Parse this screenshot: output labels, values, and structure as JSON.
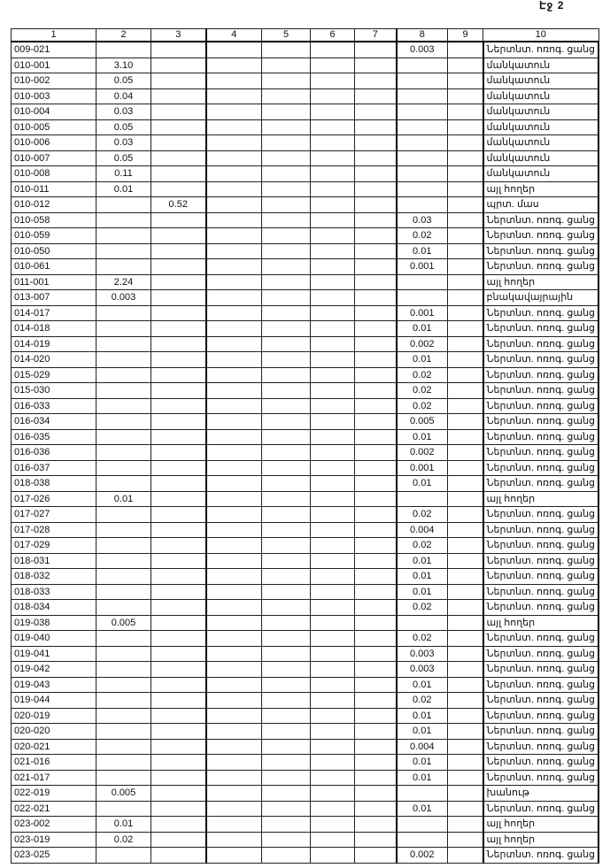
{
  "page_label": "Էջ 2",
  "columns": [
    "1",
    "2",
    "3",
    "4",
    "5",
    "6",
    "7",
    "8",
    "9",
    "10"
  ],
  "rows": [
    [
      "009-021",
      "",
      "",
      "",
      "",
      "",
      "",
      "0.003",
      "",
      "Ներտնտ. ոռոգ. ցանց"
    ],
    [
      "010-001",
      "3.10",
      "",
      "",
      "",
      "",
      "",
      "",
      "",
      "մանկատուն"
    ],
    [
      "010-002",
      "0.05",
      "",
      "",
      "",
      "",
      "",
      "",
      "",
      "մանկատուն"
    ],
    [
      "010-003",
      "0.04",
      "",
      "",
      "",
      "",
      "",
      "",
      "",
      "մանկատուն"
    ],
    [
      "010-004",
      "0.03",
      "",
      "",
      "",
      "",
      "",
      "",
      "",
      "մանկատուն"
    ],
    [
      "010-005",
      "0.05",
      "",
      "",
      "",
      "",
      "",
      "",
      "",
      "մանկատուն"
    ],
    [
      "010-006",
      "0.03",
      "",
      "",
      "",
      "",
      "",
      "",
      "",
      "մանկատուն"
    ],
    [
      "010-007",
      "0.05",
      "",
      "",
      "",
      "",
      "",
      "",
      "",
      "մանկատուն"
    ],
    [
      "010-008",
      "0.11",
      "",
      "",
      "",
      "",
      "",
      "",
      "",
      "մանկատուն"
    ],
    [
      "010-011",
      "0.01",
      "",
      "",
      "",
      "",
      "",
      "",
      "",
      "այլ հողեր"
    ],
    [
      "010-012",
      "",
      "0.52",
      "",
      "",
      "",
      "",
      "",
      "",
      "պրտ. մաս"
    ],
    [
      "010-058",
      "",
      "",
      "",
      "",
      "",
      "",
      "0.03",
      "",
      "Ներտնտ. ոռոգ. ցանց"
    ],
    [
      "010-059",
      "",
      "",
      "",
      "",
      "",
      "",
      "0.02",
      "",
      "Ներտնտ. ոռոգ. ցանց"
    ],
    [
      "010-050",
      "",
      "",
      "",
      "",
      "",
      "",
      "0.01",
      "",
      "Ներտնտ. ոռոգ. ցանց"
    ],
    [
      "010-061",
      "",
      "",
      "",
      "",
      "",
      "",
      "0.001",
      "",
      "Ներտնտ. ոռոգ. ցանց"
    ],
    [
      "011-001",
      "2.24",
      "",
      "",
      "",
      "",
      "",
      "",
      "",
      "այլ հողեր"
    ],
    [
      "013-007",
      "0.003",
      "",
      "",
      "",
      "",
      "",
      "",
      "",
      "բնակավայրային"
    ],
    [
      "014-017",
      "",
      "",
      "",
      "",
      "",
      "",
      "0.001",
      "",
      "Ներտնտ. ոռոգ. ցանց"
    ],
    [
      "014-018",
      "",
      "",
      "",
      "",
      "",
      "",
      "0.01",
      "",
      "Ներտնտ. ոռոգ. ցանց"
    ],
    [
      "014-019",
      "",
      "",
      "",
      "",
      "",
      "",
      "0.002",
      "",
      "Ներտնտ. ոռոգ. ցանց"
    ],
    [
      "014-020",
      "",
      "",
      "",
      "",
      "",
      "",
      "0.01",
      "",
      "Ներտնտ. ոռոգ. ցանց"
    ],
    [
      "015-029",
      "",
      "",
      "",
      "",
      "",
      "",
      "0.02",
      "",
      "Ներտնտ. ոռոգ. ցանց"
    ],
    [
      "015-030",
      "",
      "",
      "",
      "",
      "",
      "",
      "0.02",
      "",
      "Ներտնտ. ոռոգ. ցանց"
    ],
    [
      "016-033",
      "",
      "",
      "",
      "",
      "",
      "",
      "0.02",
      "",
      "Ներտնտ. ոռոգ. ցանց"
    ],
    [
      "016-034",
      "",
      "",
      "",
      "",
      "",
      "",
      "0.005",
      "",
      "Ներտնտ. ոռոգ. ցանց"
    ],
    [
      "016-035",
      "",
      "",
      "",
      "",
      "",
      "",
      "0.01",
      "",
      "Ներտնտ. ոռոգ. ցանց"
    ],
    [
      "016-036",
      "",
      "",
      "",
      "",
      "",
      "",
      "0.002",
      "",
      "Ներտնտ. ոռոգ. ցանց"
    ],
    [
      "016-037",
      "",
      "",
      "",
      "",
      "",
      "",
      "0.001",
      "",
      "Ներտնտ. ոռոգ. ցանց"
    ],
    [
      "018-038",
      "",
      "",
      "",
      "",
      "",
      "",
      "0.01",
      "",
      "Ներտնտ. ոռոգ. ցանց"
    ],
    [
      "017-026",
      "0.01",
      "",
      "",
      "",
      "",
      "",
      "",
      "",
      "այլ հողեր"
    ],
    [
      "017-027",
      "",
      "",
      "",
      "",
      "",
      "",
      "0.02",
      "",
      "Ներտնտ. ոռոգ. ցանց"
    ],
    [
      "017-028",
      "",
      "",
      "",
      "",
      "",
      "",
      "0.004",
      "",
      "Ներտնտ. ոռոգ. ցանց"
    ],
    [
      "017-029",
      "",
      "",
      "",
      "",
      "",
      "",
      "0.02",
      "",
      "Ներտնտ. ոռոգ. ցանց"
    ],
    [
      "018-031",
      "",
      "",
      "",
      "",
      "",
      "",
      "0.01",
      "",
      "Ներտնտ. ոռոգ. ցանց"
    ],
    [
      "018-032",
      "",
      "",
      "",
      "",
      "",
      "",
      "0.01",
      "",
      "Ներտնտ. ոռոգ. ցանց"
    ],
    [
      "018-033",
      "",
      "",
      "",
      "",
      "",
      "",
      "0.01",
      "",
      "Ներտնտ. ոռոգ. ցանց"
    ],
    [
      "018-034",
      "",
      "",
      "",
      "",
      "",
      "",
      "0.02",
      "",
      "Ներտնտ. ոռոգ. ցանց"
    ],
    [
      "019-038",
      "0.005",
      "",
      "",
      "",
      "",
      "",
      "",
      "",
      "այլ հողեր"
    ],
    [
      "019-040",
      "",
      "",
      "",
      "",
      "",
      "",
      "0.02",
      "",
      "Ներտնտ. ոռոգ. ցանց"
    ],
    [
      "019-041",
      "",
      "",
      "",
      "",
      "",
      "",
      "0.003",
      "",
      "Ներտնտ. ոռոգ. ցանց"
    ],
    [
      "019-042",
      "",
      "",
      "",
      "",
      "",
      "",
      "0.003",
      "",
      "Ներտնտ. ոռոգ. ցանց"
    ],
    [
      "019-043",
      "",
      "",
      "",
      "",
      "",
      "",
      "0.01",
      "",
      "Ներտնտ. ոռոգ. ցանց"
    ],
    [
      "019-044",
      "",
      "",
      "",
      "",
      "",
      "",
      "0.02",
      "",
      "Ներտնտ. ոռոգ. ցանց"
    ],
    [
      "020-019",
      "",
      "",
      "",
      "",
      "",
      "",
      "0.01",
      "",
      "Ներտնտ. ոռոգ. ցանց"
    ],
    [
      "020-020",
      "",
      "",
      "",
      "",
      "",
      "",
      "0.01",
      "",
      "Ներտնտ. ոռոգ. ցանց"
    ],
    [
      "020-021",
      "",
      "",
      "",
      "",
      "",
      "",
      "0.004",
      "",
      "Ներտնտ. ոռոգ. ցանց"
    ],
    [
      "021-016",
      "",
      "",
      "",
      "",
      "",
      "",
      "0.01",
      "",
      "Ներտնտ. ոռոգ. ցանց"
    ],
    [
      "021-017",
      "",
      "",
      "",
      "",
      "",
      "",
      "0.01",
      "",
      "Ներտնտ. ոռոգ. ցանց"
    ],
    [
      "022-019",
      "0.005",
      "",
      "",
      "",
      "",
      "",
      "",
      "",
      "խանութ"
    ],
    [
      "022-021",
      "",
      "",
      "",
      "",
      "",
      "",
      "0.01",
      "",
      "Ներտնտ. ոռոգ. ցանց"
    ],
    [
      "023-002",
      "0.01",
      "",
      "",
      "",
      "",
      "",
      "",
      "",
      "այլ հողեր"
    ],
    [
      "023-019",
      "0.02",
      "",
      "",
      "",
      "",
      "",
      "",
      "",
      "այլ հողեր"
    ],
    [
      "023-025",
      "",
      "",
      "",
      "",
      "",
      "",
      "0.002",
      "",
      "Ներտնտ. ոռոգ. ցանց"
    ]
  ]
}
